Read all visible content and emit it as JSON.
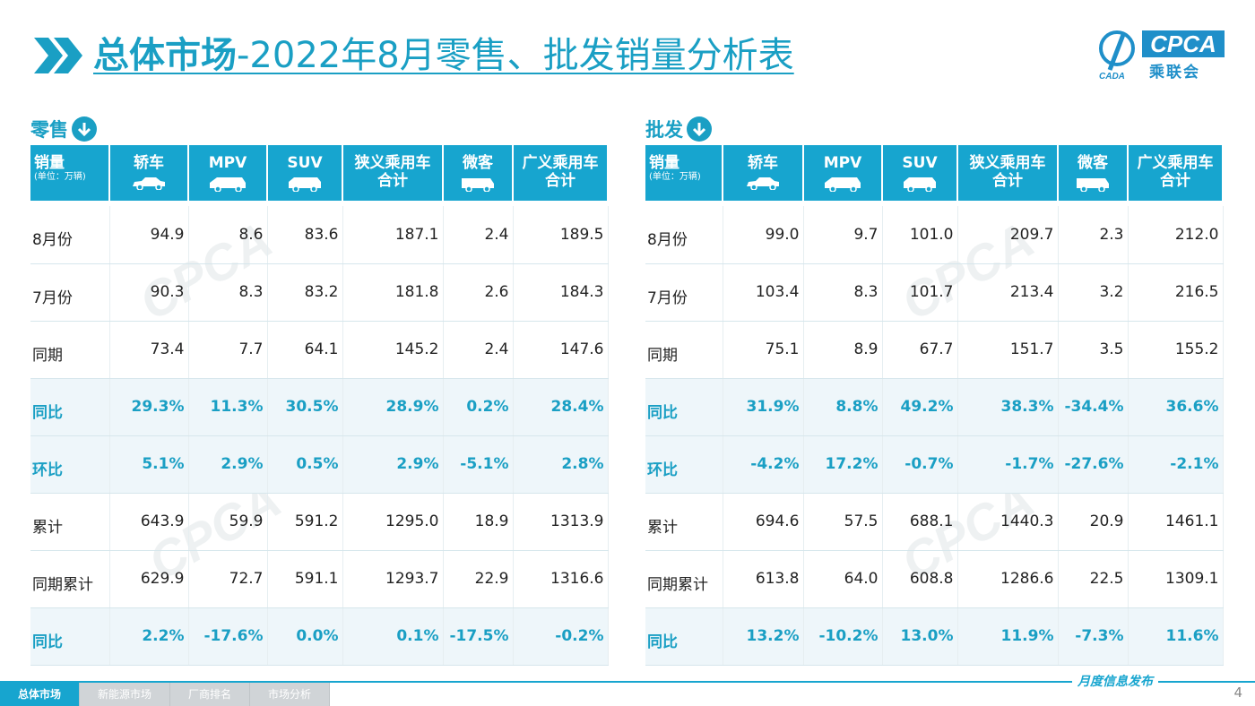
{
  "title": {
    "bold": "总体市场",
    "rest": "-2022年8月零售、批发销量分析表"
  },
  "logo": {
    "text": "CPCA",
    "subtitle": "乘联会",
    "mark_text": "CADA"
  },
  "sections": [
    {
      "label": "零售"
    },
    {
      "label": "批发"
    }
  ],
  "header": {
    "first": "销量",
    "unit": "(单位：万辆)",
    "columns": [
      "轿车",
      "MPV",
      "SUV",
      "狭义乘用车\n合计",
      "微客",
      "广义乘用车\n合计"
    ]
  },
  "retail": {
    "rows": [
      {
        "label": "8月份",
        "values": [
          "94.9",
          "8.6",
          "83.6",
          "187.1",
          "2.4",
          "189.5"
        ],
        "pct": false
      },
      {
        "label": "7月份",
        "values": [
          "90.3",
          "8.3",
          "83.2",
          "181.8",
          "2.6",
          "184.3"
        ],
        "pct": false
      },
      {
        "label": "同期",
        "values": [
          "73.4",
          "7.7",
          "64.1",
          "145.2",
          "2.4",
          "147.6"
        ],
        "pct": false
      },
      {
        "label": "同比",
        "values": [
          "29.3%",
          "11.3%",
          "30.5%",
          "28.9%",
          "0.2%",
          "28.4%"
        ],
        "pct": true
      },
      {
        "label": "环比",
        "values": [
          "5.1%",
          "2.9%",
          "0.5%",
          "2.9%",
          "-5.1%",
          "2.8%"
        ],
        "pct": true
      },
      {
        "label": "累计",
        "values": [
          "643.9",
          "59.9",
          "591.2",
          "1295.0",
          "18.9",
          "1313.9"
        ],
        "pct": false
      },
      {
        "label": "同期累计",
        "values": [
          "629.9",
          "72.7",
          "591.1",
          "1293.7",
          "22.9",
          "1316.6"
        ],
        "pct": false
      },
      {
        "label": "同比",
        "values": [
          "2.2%",
          "-17.6%",
          "0.0%",
          "0.1%",
          "-17.5%",
          "-0.2%"
        ],
        "pct": true
      }
    ]
  },
  "wholesale": {
    "rows": [
      {
        "label": "8月份",
        "values": [
          "99.0",
          "9.7",
          "101.0",
          "209.7",
          "2.3",
          "212.0"
        ],
        "pct": false
      },
      {
        "label": "7月份",
        "values": [
          "103.4",
          "8.3",
          "101.7",
          "213.4",
          "3.2",
          "216.5"
        ],
        "pct": false
      },
      {
        "label": "同期",
        "values": [
          "75.1",
          "8.9",
          "67.7",
          "151.7",
          "3.5",
          "155.2"
        ],
        "pct": false
      },
      {
        "label": "同比",
        "values": [
          "31.9%",
          "8.8%",
          "49.2%",
          "38.3%",
          "-34.4%",
          "36.6%"
        ],
        "pct": true
      },
      {
        "label": "环比",
        "values": [
          "-4.2%",
          "17.2%",
          "-0.7%",
          "-1.7%",
          "-27.6%",
          "-2.1%"
        ],
        "pct": true
      },
      {
        "label": "累计",
        "values": [
          "694.6",
          "57.5",
          "688.1",
          "1440.3",
          "20.9",
          "1461.1"
        ],
        "pct": false
      },
      {
        "label": "同期累计",
        "values": [
          "613.8",
          "64.0",
          "608.8",
          "1286.6",
          "22.5",
          "1309.1"
        ],
        "pct": false
      },
      {
        "label": "同比",
        "values": [
          "13.2%",
          "-10.2%",
          "13.0%",
          "11.9%",
          "-7.3%",
          "11.6%"
        ],
        "pct": true
      }
    ]
  },
  "footer": {
    "tabs": [
      "总体市场",
      "新能源市场",
      "厂商排名",
      "市场分析"
    ],
    "active_tab": 0,
    "slogan": "月度信息发布",
    "page": "4"
  },
  "colors": {
    "accent": "#17a5cf",
    "title": "#1a9fc4",
    "pct_bg": "#eef6fa",
    "logo": "#1f8fc9"
  },
  "icons": [
    "chevron-right-double-icon",
    "arrow-down-circle-icon",
    "sedan-icon",
    "mpv-icon",
    "suv-icon",
    "microvan-icon"
  ]
}
